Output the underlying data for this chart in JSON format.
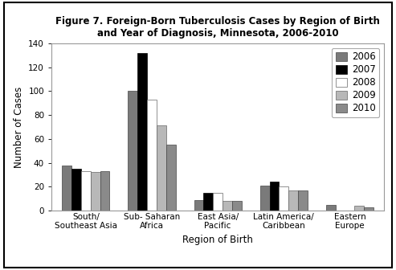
{
  "title": "Figure 7. Foreign-Born Tuberculosis Cases by Region of Birth\nand Year of Diagnosis, Minnesota, 2006-2010",
  "xlabel": "Region of Birth",
  "ylabel": "Number of Cases",
  "categories": [
    "South/\nSoutheast Asia",
    "Sub- Saharan\nAfrica",
    "East Asia/\nPacific",
    "Latin America/\nCaribbean",
    "Eastern\nEurope"
  ],
  "years": [
    "2006",
    "2007",
    "2008",
    "2009",
    "2010"
  ],
  "data": [
    [
      38,
      35,
      33,
      32,
      33
    ],
    [
      100,
      132,
      93,
      71,
      55
    ],
    [
      9,
      15,
      15,
      8,
      8
    ],
    [
      21,
      24,
      20,
      17,
      17
    ],
    [
      5,
      0,
      0,
      4,
      3
    ]
  ],
  "bar_colors": [
    "#7a7a7a",
    "#000000",
    "#ffffff",
    "#b8b8b8",
    "#8a8a8a"
  ],
  "bar_edgecolors": [
    "#444444",
    "#000000",
    "#666666",
    "#666666",
    "#444444"
  ],
  "ylim": [
    0,
    140
  ],
  "yticks": [
    0,
    20,
    40,
    60,
    80,
    100,
    120,
    140
  ],
  "background_color": "#ffffff",
  "title_fontsize": 8.5,
  "axis_label_fontsize": 8.5,
  "tick_fontsize": 7.5,
  "legend_fontsize": 8.5
}
